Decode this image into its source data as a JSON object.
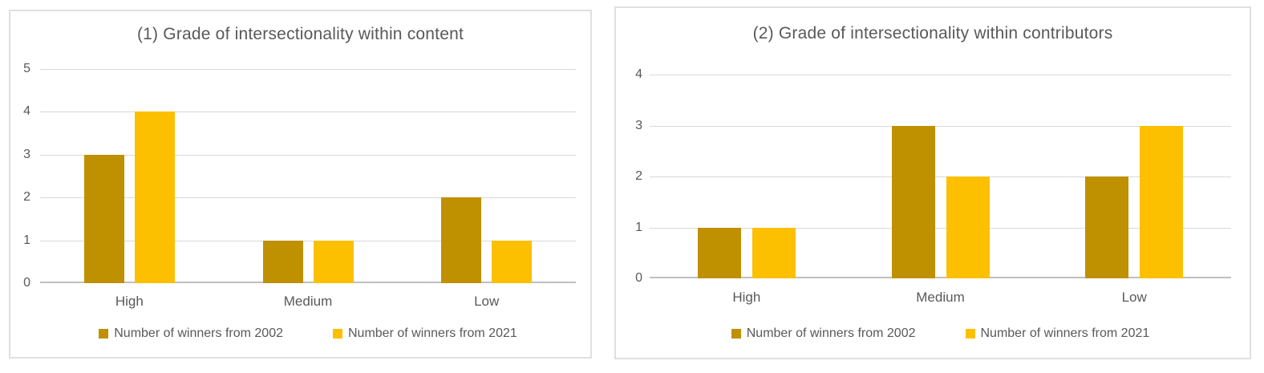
{
  "colors": {
    "series_2002": "#BF9000",
    "series_2021": "#FCC000",
    "text": "#595959",
    "gridline": "#D9D9D9",
    "axis_line": "#BFBFBF",
    "panel_border": "#E0E0E0",
    "background": "#FFFFFF"
  },
  "chart_data": [
    {
      "type": "bar",
      "title": "(1) Grade of intersectionality within content",
      "categories": [
        "High",
        "Medium",
        "Low"
      ],
      "series": [
        {
          "name": "Number of winners from 2002",
          "color": "#BF9000",
          "values": [
            3,
            1,
            2
          ]
        },
        {
          "name": "Number of winners from 2021",
          "color": "#FCC000",
          "values": [
            4,
            1,
            1
          ]
        }
      ],
      "xlabel": "",
      "ylabel": "",
      "ylim": [
        0,
        5
      ],
      "yticks": [
        0,
        1,
        2,
        3,
        4,
        5
      ],
      "grid": true,
      "legend_position": "bottom"
    },
    {
      "type": "bar",
      "title": "(2) Grade of intersectionality within contributors",
      "categories": [
        "High",
        "Medium",
        "Low"
      ],
      "series": [
        {
          "name": "Number of winners from 2002",
          "color": "#BF9000",
          "values": [
            1,
            3,
            2
          ]
        },
        {
          "name": "Number of winners from 2021",
          "color": "#FCC000",
          "values": [
            1,
            2,
            3
          ]
        }
      ],
      "xlabel": "",
      "ylabel": "",
      "ylim": [
        0,
        4
      ],
      "yticks": [
        0,
        1,
        2,
        3,
        4
      ],
      "grid": true,
      "legend_position": "bottom"
    }
  ]
}
